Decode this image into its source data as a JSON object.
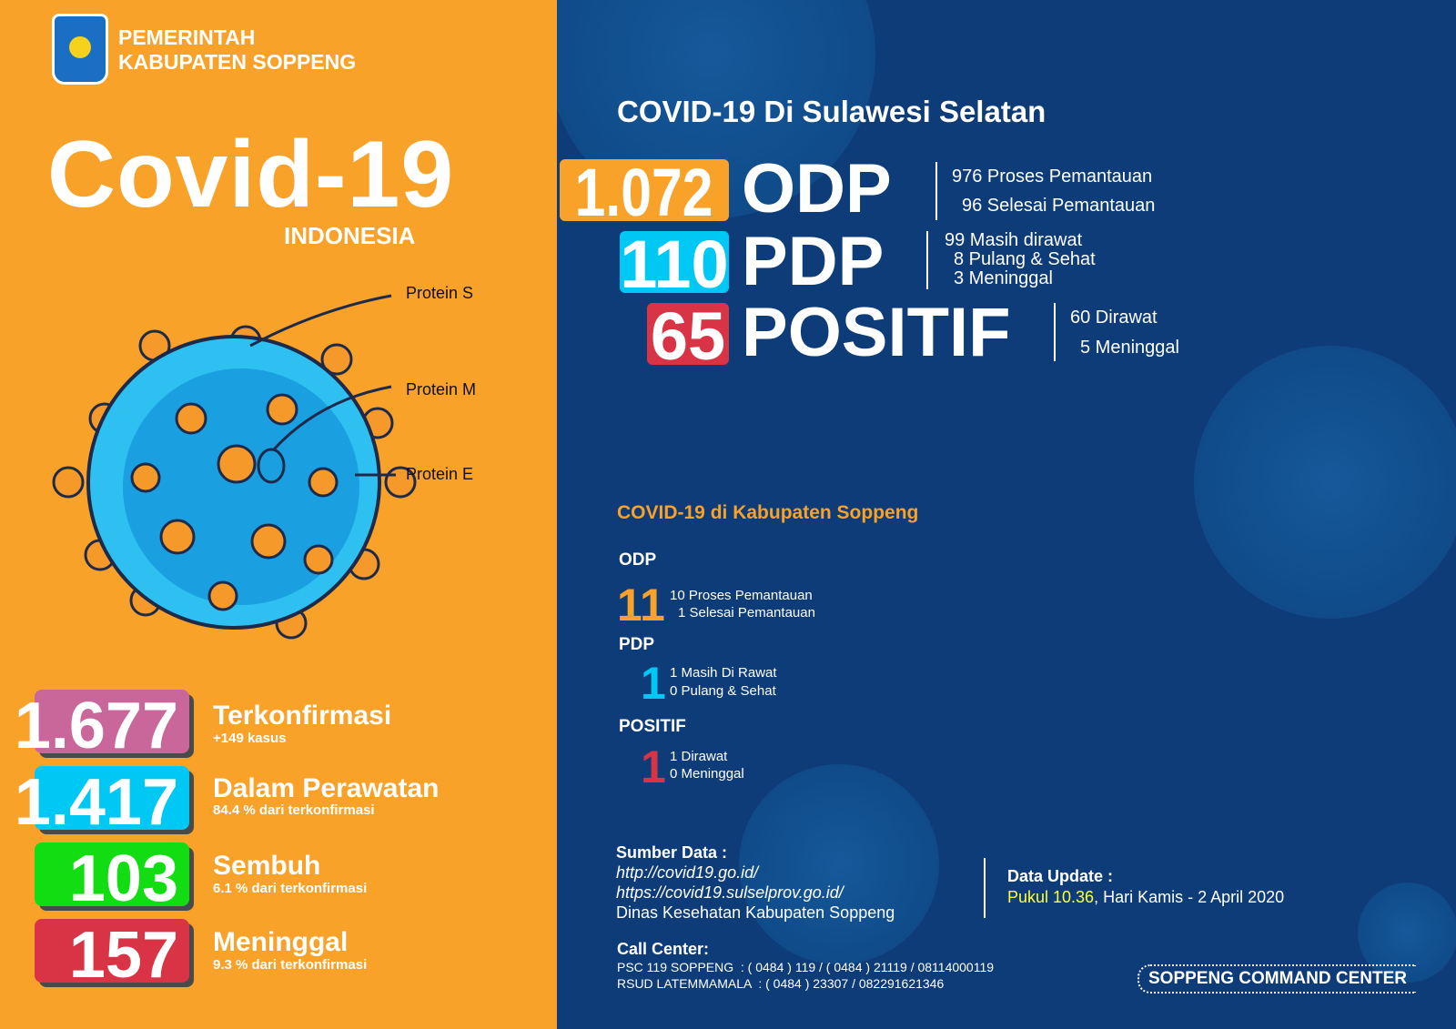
{
  "header": {
    "org_line1": "PEMERINTAH",
    "org_line2": "KABUPATEN SOPPENG",
    "title": "Covid-19",
    "subtitle": "INDONESIA"
  },
  "virus_labels": [
    "Protein S",
    "Protein M",
    "Protein E"
  ],
  "indonesia_stats": [
    {
      "value": "1.677",
      "label": "Terkonfirmasi",
      "sub": "+149 kasus",
      "color": "#c9669a"
    },
    {
      "value": "1.417",
      "label": "Dalam Perawatan",
      "sub": "84.4 % dari terkonfirmasi",
      "color": "#00c8f5"
    },
    {
      "value": "103",
      "label": "Sembuh",
      "sub": "6.1 % dari terkonfirmasi",
      "color": "#12dd12"
    },
    {
      "value": "157",
      "label": "Meninggal",
      "sub": "9.3 % dari terkonfirmasi",
      "color": "#d93445"
    }
  ],
  "sulsel": {
    "title": "COVID-19 Di Sulawesi Selatan",
    "rows": [
      {
        "value": "1.072",
        "label": "ODP",
        "color": "#f9a229",
        "details": [
          "976 Proses Pemantauan",
          "96 Selesai Pemantauan"
        ]
      },
      {
        "value": "110",
        "label": "PDP",
        "color": "#00c8f5",
        "details": [
          "99 Masih dirawat",
          "8 Pulang & Sehat",
          "3 Meninggal"
        ]
      },
      {
        "value": "65",
        "label": "POSITIF",
        "color": "#d93445",
        "details": [
          "60 Dirawat",
          "5 Meninggal"
        ]
      }
    ]
  },
  "soppeng": {
    "title": "COVID-19 di Kabupaten Soppeng",
    "sections": [
      {
        "label": "ODP",
        "value": "11",
        "color": "#f9a229",
        "details": [
          "10 Proses Pemantauan",
          "1 Selesai Pemantauan"
        ]
      },
      {
        "label": "PDP",
        "value": "1",
        "color": "#00c8f5",
        "details": [
          "1 Masih Di Rawat",
          "0 Pulang & Sehat"
        ]
      },
      {
        "label": "POSITIF",
        "value": "1",
        "color": "#d93445",
        "details": [
          "1 Dirawat",
          "0 Meninggal"
        ]
      }
    ]
  },
  "sources": {
    "title": "Sumber Data :",
    "lines": [
      "http://covid19.go.id/",
      "https://covid19.sulselprov.go.id/",
      "Dinas Kesehatan Kabupaten Soppeng"
    ]
  },
  "update": {
    "title": "Data Update :",
    "time": "Pukul 10.36",
    "rest": ", Hari Kamis - 2 April 2020",
    "time_color": "#ffff33"
  },
  "call_center": {
    "title": "Call Center:",
    "lines": [
      "PSC 119 SOPPENG  : ( 0484 ) 119 / ( 0484 ) 21119 / 08114000119",
      "RSUD LATEMMAMALA  : ( 0484 ) 23307 / 082291621346"
    ]
  },
  "footer_badge": "SOPPENG COMMAND CENTER"
}
